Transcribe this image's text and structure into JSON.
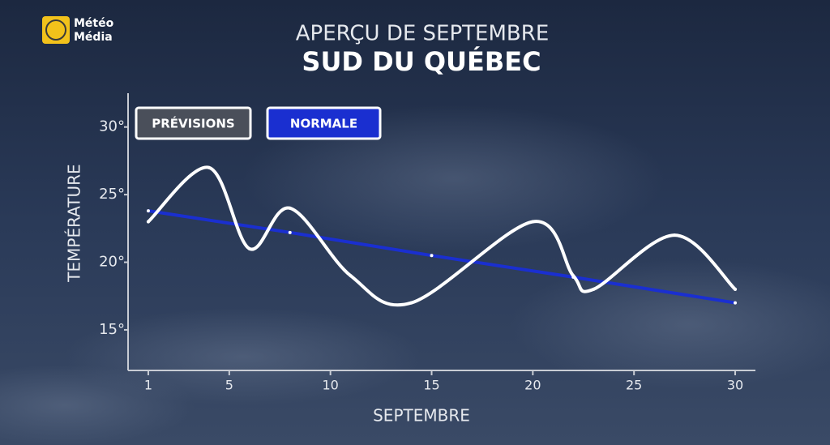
{
  "brand": {
    "line1": "Météo",
    "line2": "Média"
  },
  "chart_data": {
    "type": "line",
    "subtitle": "APERÇU DE SEPTEMBRE",
    "title": "SUD DU QUÉBEC",
    "x_label": "SEPTEMBRE",
    "y_label": "TEMPÉRATURE",
    "xlim": [
      0,
      31
    ],
    "ylim": [
      12,
      32.5
    ],
    "xticks": [
      1,
      5,
      10,
      15,
      20,
      25,
      30
    ],
    "yticks": [
      {
        "value": 15,
        "label": "15°"
      },
      {
        "value": 20,
        "label": "20°"
      },
      {
        "value": 25,
        "label": "25°"
      },
      {
        "value": 30,
        "label": "30°"
      }
    ],
    "smooth": true,
    "series": [
      {
        "name": "PRÉVISIONS",
        "color": "#ffffff",
        "x": [
          1,
          4,
          6,
          8,
          11,
          14,
          20,
          22,
          23,
          27,
          30
        ],
        "values": [
          23,
          27,
          21,
          24,
          19,
          17,
          23,
          19,
          18,
          22,
          18
        ]
      },
      {
        "name": "NORMALE",
        "color": "#1a2fd0",
        "x": [
          1,
          8,
          15,
          22,
          30
        ],
        "values": [
          23.8,
          22.2,
          20.5,
          18.9,
          17
        ]
      }
    ]
  }
}
